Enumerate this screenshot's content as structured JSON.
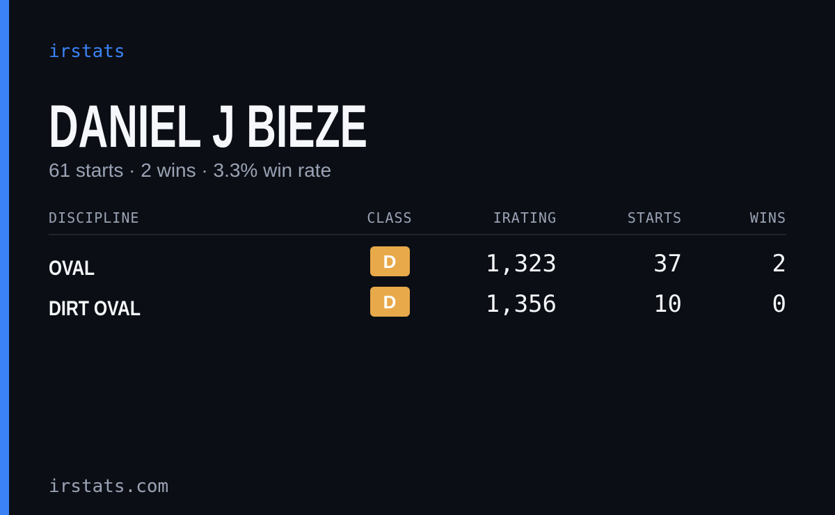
{
  "brand": "irstats",
  "driver": {
    "name": "DANIEL J BIEZE",
    "summary": "61 starts · 2 wins · 3.3% win rate"
  },
  "table": {
    "headers": [
      "DISCIPLINE",
      "CLASS",
      "IRATING",
      "STARTS",
      "WINS"
    ],
    "rows": [
      [
        "OVAL",
        "D",
        "1,323",
        "37",
        "2"
      ],
      [
        "DIRT OVAL",
        "D",
        "1,356",
        "10",
        "0"
      ]
    ]
  },
  "footer": "irstats.com"
}
